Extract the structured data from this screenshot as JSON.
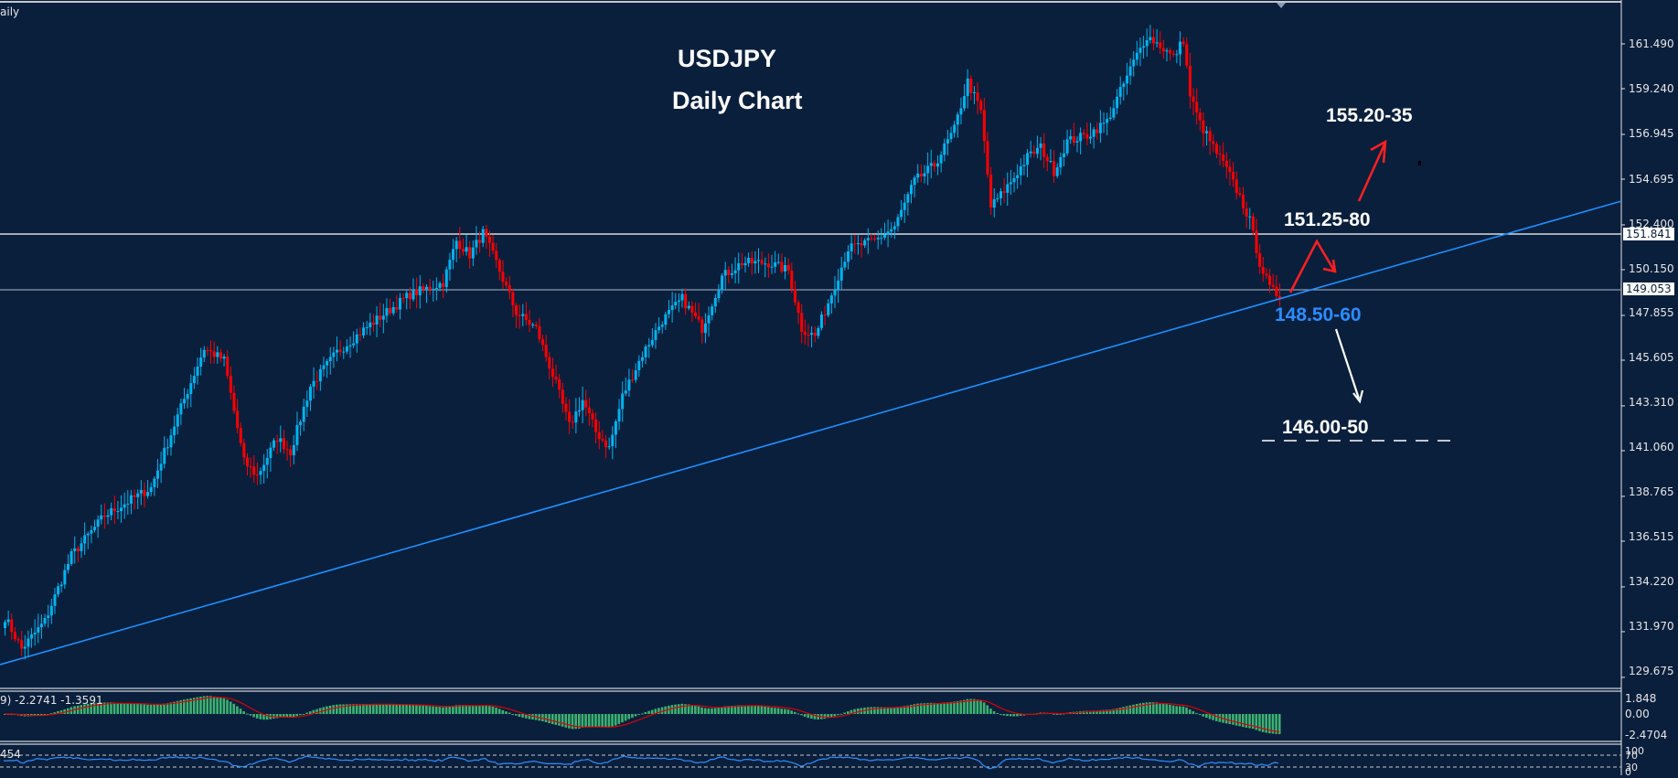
{
  "chart_data": {
    "type": "candlestick",
    "title": "USDJPY",
    "subtitle": "Daily Chart",
    "timeframe_label": "aily",
    "ylim": [
      129.0,
      163.0
    ],
    "y_ticks": [
      161.49,
      159.24,
      156.945,
      154.695,
      152.4,
      150.15,
      147.855,
      145.605,
      143.31,
      141.06,
      138.765,
      136.515,
      134.22,
      131.97,
      129.675
    ],
    "horizontal_lines": [
      {
        "price": 151.841,
        "label": "151.841",
        "color": "#ffffff"
      },
      {
        "price": 149.053,
        "label": "149.053",
        "color": "#8a9bb0"
      }
    ],
    "trendline": {
      "color": "#1e90ff",
      "from_price_at_left": 131.5,
      "to_price_at_axis": 153.4
    },
    "bull_color": "#00b4f0",
    "bear_color": "#ff0000",
    "price_pivots": [
      [
        0,
        132.7
      ],
      [
        5,
        131.1
      ],
      [
        12,
        132.5
      ],
      [
        20,
        135.8
      ],
      [
        30,
        137.8
      ],
      [
        38,
        138.6
      ],
      [
        44,
        139.2
      ],
      [
        52,
        142.8
      ],
      [
        60,
        146.2
      ],
      [
        66,
        145.6
      ],
      [
        72,
        140.5
      ],
      [
        76,
        139.8
      ],
      [
        82,
        141.7
      ],
      [
        86,
        141.0
      ],
      [
        92,
        144.3
      ],
      [
        100,
        146.0
      ],
      [
        110,
        147.4
      ],
      [
        122,
        148.9
      ],
      [
        132,
        149.5
      ],
      [
        136,
        151.6
      ],
      [
        140,
        150.9
      ],
      [
        144,
        152.0
      ],
      [
        148,
        150.5
      ],
      [
        154,
        148.0
      ],
      [
        160,
        147.2
      ],
      [
        166,
        144.4
      ],
      [
        170,
        142.3
      ],
      [
        174,
        143.6
      ],
      [
        178,
        142.0
      ],
      [
        182,
        141.2
      ],
      [
        186,
        143.8
      ],
      [
        192,
        145.9
      ],
      [
        198,
        147.6
      ],
      [
        204,
        148.7
      ],
      [
        210,
        147.2
      ],
      [
        216,
        149.8
      ],
      [
        222,
        150.5
      ],
      [
        230,
        150.5
      ],
      [
        236,
        150.1
      ],
      [
        240,
        147.2
      ],
      [
        244,
        146.8
      ],
      [
        248,
        148.5
      ],
      [
        254,
        151.2
      ],
      [
        262,
        151.6
      ],
      [
        268,
        152.3
      ],
      [
        274,
        154.6
      ],
      [
        280,
        155.4
      ],
      [
        286,
        157.2
      ],
      [
        290,
        159.6
      ],
      [
        294,
        158.1
      ],
      [
        297,
        153.3
      ],
      [
        300,
        153.9
      ],
      [
        304,
        154.8
      ],
      [
        308,
        155.8
      ],
      [
        312,
        156.3
      ],
      [
        316,
        155.1
      ],
      [
        320,
        156.6
      ],
      [
        326,
        156.9
      ],
      [
        332,
        157.6
      ],
      [
        336,
        159.1
      ],
      [
        340,
        160.6
      ],
      [
        344,
        161.9
      ],
      [
        348,
        161.4
      ],
      [
        352,
        160.8
      ],
      [
        355,
        161.7
      ],
      [
        357,
        158.9
      ],
      [
        360,
        157.5
      ],
      [
        364,
        156.3
      ],
      [
        368,
        155.2
      ],
      [
        372,
        153.8
      ],
      [
        375,
        152.6
      ],
      [
        378,
        150.5
      ],
      [
        381,
        149.2
      ],
      [
        384,
        148.8
      ]
    ],
    "macd": {
      "label": "9) -2.2741 -1.3591",
      "axis_ticks": [
        {
          "value": "1.848",
          "y": 764
        },
        {
          "value": "0.00",
          "y": 781
        },
        {
          "value": "-2.4704",
          "y": 804
        }
      ],
      "histogram_color": "#3cb371",
      "signal_color": "#e00000"
    },
    "oscillator": {
      "label": "454",
      "line_color": "#2f8fff",
      "levels": [
        70,
        30
      ],
      "axis_ticks": [
        {
          "value": "100",
          "y": 818
        },
        {
          "value": "70",
          "y": 823
        },
        {
          "value": "30",
          "y": 836
        },
        {
          "value": "0",
          "y": 841
        }
      ]
    }
  },
  "annotations": {
    "target_up": {
      "text": "155.20-35",
      "color": "#ffffff"
    },
    "resistance": {
      "text": "151.25-80",
      "color": "#ffffff"
    },
    "support": {
      "text": "148.50-60",
      "color": "#2b8cff"
    },
    "target_down": {
      "text": "146.00-50",
      "color": "#ffffff"
    }
  },
  "price_axis_labels": [
    "161.490",
    "159.240",
    "156.945",
    "154.695",
    "152.400",
    "150.150",
    "147.855",
    "145.605",
    "143.310",
    "141.060",
    "138.765",
    "136.515",
    "134.220",
    "131.970",
    "129.675"
  ],
  "price_tags": [
    "151.841",
    "149.053"
  ],
  "macd_axis": [
    "1.848",
    "0.00",
    "-2.4704"
  ],
  "osc_axis": [
    "100",
    "70",
    "30",
    "0"
  ]
}
